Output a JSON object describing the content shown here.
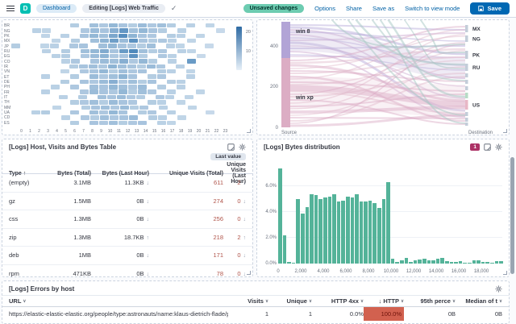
{
  "header": {
    "breadcrumbs": {
      "dashboard": "Dashboard",
      "current": "Editing [Logs] Web Traffic"
    },
    "unsaved_badge": "Unsaved changes",
    "links": {
      "options": "Options",
      "share": "Share",
      "save_as": "Save as",
      "switch_mode": "Switch to view mode"
    },
    "save_label": "Save",
    "logo_letter": "D"
  },
  "chart_data": {
    "heatmap": {
      "type": "heatmap",
      "xlabel_hours": [
        "0",
        "1",
        "2",
        "3",
        "4",
        "5",
        "6",
        "7",
        "8",
        "9",
        "10",
        "11",
        "12",
        "13",
        "14",
        "15",
        "16",
        "17",
        "18",
        "19",
        "20",
        "21",
        "22",
        "23"
      ],
      "legend_ticks": [
        "20",
        "10"
      ],
      "cell_color": "#3d7db5",
      "rows": [
        {
          "label": "BR",
          "values": [
            0,
            0,
            0,
            0,
            0,
            0,
            9,
            0,
            12,
            10,
            14,
            11,
            9,
            13,
            10,
            12,
            9,
            0,
            8,
            0,
            7,
            0,
            0,
            0
          ]
        },
        {
          "label": "NG",
          "values": [
            0,
            0,
            8,
            7,
            0,
            0,
            0,
            10,
            13,
            11,
            16,
            22,
            12,
            14,
            11,
            9,
            0,
            8,
            0,
            0,
            0,
            6,
            0,
            0
          ]
        },
        {
          "label": "PK",
          "values": [
            0,
            0,
            0,
            7,
            0,
            8,
            0,
            11,
            14,
            12,
            18,
            24,
            15,
            11,
            10,
            0,
            9,
            8,
            0,
            7,
            0,
            0,
            0,
            0
          ]
        },
        {
          "label": "MX",
          "values": [
            0,
            0,
            0,
            0,
            7,
            0,
            9,
            0,
            12,
            15,
            20,
            13,
            23,
            11,
            9,
            10,
            8,
            0,
            7,
            0,
            0,
            0,
            0,
            0
          ]
        },
        {
          "label": "JP",
          "values": [
            9,
            0,
            0,
            7,
            8,
            0,
            10,
            11,
            0,
            12,
            14,
            11,
            10,
            9,
            12,
            0,
            8,
            7,
            0,
            0,
            6,
            0,
            0,
            0
          ]
        },
        {
          "label": "RU",
          "values": [
            0,
            0,
            0,
            8,
            0,
            9,
            0,
            12,
            14,
            17,
            11,
            21,
            25,
            12,
            9,
            10,
            0,
            8,
            7,
            0,
            0,
            0,
            0,
            0
          ]
        },
        {
          "label": "EG",
          "values": [
            0,
            0,
            0,
            0,
            8,
            9,
            0,
            10,
            13,
            15,
            10,
            11,
            23,
            9,
            0,
            10,
            8,
            0,
            0,
            6,
            0,
            0,
            0,
            0
          ]
        },
        {
          "label": "CO",
          "values": [
            0,
            0,
            0,
            0,
            0,
            8,
            10,
            0,
            11,
            13,
            12,
            16,
            10,
            14,
            9,
            0,
            8,
            0,
            21,
            0,
            0,
            0,
            0,
            0
          ]
        },
        {
          "label": "IR",
          "values": [
            0,
            0,
            0,
            0,
            0,
            0,
            9,
            11,
            12,
            10,
            15,
            12,
            11,
            9,
            13,
            10,
            0,
            8,
            0,
            0,
            0,
            0,
            0,
            0
          ]
        },
        {
          "label": "VN",
          "values": [
            0,
            0,
            0,
            0,
            0,
            7,
            0,
            10,
            11,
            14,
            9,
            12,
            10,
            11,
            0,
            9,
            8,
            0,
            7,
            0,
            0,
            0,
            0,
            0
          ]
        },
        {
          "label": "ET",
          "values": [
            0,
            0,
            0,
            8,
            0,
            0,
            9,
            0,
            13,
            10,
            12,
            15,
            11,
            0,
            9,
            10,
            0,
            0,
            8,
            0,
            0,
            0,
            0,
            0
          ]
        },
        {
          "label": "DE",
          "values": [
            0,
            0,
            0,
            0,
            0,
            9,
            0,
            11,
            10,
            13,
            16,
            10,
            12,
            9,
            11,
            0,
            9,
            8,
            0,
            0,
            0,
            0,
            0,
            0
          ]
        },
        {
          "label": "PH",
          "values": [
            0,
            0,
            0,
            0,
            8,
            0,
            10,
            0,
            12,
            11,
            14,
            12,
            10,
            13,
            0,
            9,
            0,
            8,
            0,
            0,
            0,
            0,
            0,
            0
          ]
        },
        {
          "label": "FR",
          "values": [
            0,
            0,
            0,
            8,
            0,
            0,
            0,
            10,
            13,
            11,
            10,
            14,
            9,
            12,
            10,
            0,
            8,
            0,
            0,
            7,
            0,
            0,
            0,
            0
          ]
        },
        {
          "label": "IT",
          "values": [
            0,
            0,
            0,
            0,
            0,
            8,
            0,
            9,
            0,
            12,
            11,
            13,
            10,
            9,
            0,
            10,
            8,
            0,
            7,
            0,
            0,
            0,
            0,
            0
          ]
        },
        {
          "label": "TH",
          "values": [
            0,
            0,
            0,
            0,
            0,
            0,
            9,
            10,
            12,
            9,
            13,
            11,
            10,
            0,
            9,
            8,
            0,
            7,
            0,
            0,
            0,
            0,
            0,
            0
          ]
        },
        {
          "label": "MM",
          "values": [
            0,
            0,
            0,
            0,
            7,
            0,
            0,
            9,
            11,
            12,
            10,
            13,
            9,
            10,
            0,
            8,
            0,
            0,
            7,
            0,
            0,
            0,
            0,
            0
          ]
        },
        {
          "label": "UA",
          "values": [
            0,
            0,
            8,
            9,
            0,
            0,
            10,
            0,
            12,
            10,
            14,
            11,
            0,
            9,
            10,
            0,
            8,
            0,
            0,
            0,
            6,
            0,
            0,
            0
          ]
        },
        {
          "label": "CD",
          "values": [
            0,
            0,
            0,
            0,
            0,
            8,
            0,
            10,
            9,
            12,
            10,
            11,
            13,
            0,
            9,
            8,
            0,
            7,
            0,
            0,
            0,
            0,
            0,
            0
          ]
        },
        {
          "label": "ES",
          "values": [
            0,
            0,
            0,
            0,
            0,
            0,
            9,
            0,
            11,
            10,
            12,
            9,
            10,
            11,
            0,
            8,
            7,
            0,
            0,
            0,
            0,
            0,
            0,
            0
          ]
        }
      ]
    },
    "sankey": {
      "type": "sankey",
      "source_axis": "Source",
      "dest_axis": "Destination",
      "y_ticks": [
        {
          "v": "400",
          "y": 32
        },
        {
          "v": "200",
          "y": 82
        },
        {
          "v": "0",
          "y": 133
        }
      ],
      "source_nodes": [
        {
          "label": "win 8",
          "y": 2,
          "h": 45,
          "c": "#b2a4d6"
        },
        {
          "label": "win xp",
          "y": 47,
          "h": 86,
          "c": "#dcadc4"
        }
      ],
      "dest_nodes": [
        {
          "y": 6,
          "h": 9,
          "label": "MX"
        },
        {
          "y": 19,
          "h": 8,
          "label": "NG"
        },
        {
          "y": 38,
          "h": 10,
          "label": "PK"
        },
        {
          "y": 54,
          "h": 9,
          "label": "RU"
        },
        {
          "y": 66,
          "h": 5
        },
        {
          "y": 74,
          "h": 5
        },
        {
          "y": 82,
          "h": 5
        },
        {
          "y": 90,
          "h": 7,
          "c": "#b7dcc6"
        },
        {
          "y": 99,
          "h": 12,
          "label": "US",
          "c": "#e8b7c6"
        },
        {
          "y": 114,
          "h": 5
        },
        {
          "y": 121,
          "h": 5
        },
        {
          "y": 127,
          "h": 4
        }
      ],
      "palette": [
        "#c9a6ce",
        "#b2a4d6",
        "#d9a8c3",
        "#e0b9c9",
        "#a5c8c3",
        "#cbbede",
        "#ecd2dd"
      ],
      "flows": [
        [
          6,
          12,
          2,
          1
        ],
        [
          9,
          42,
          3,
          1
        ],
        [
          12,
          72,
          2,
          0
        ],
        [
          15,
          26,
          1.5,
          1
        ],
        [
          18,
          97,
          2,
          0
        ],
        [
          22,
          56,
          1.5,
          1
        ],
        [
          25,
          16,
          2,
          0
        ],
        [
          28,
          112,
          3,
          1
        ],
        [
          32,
          82,
          1.5,
          0
        ],
        [
          35,
          32,
          2,
          1
        ],
        [
          39,
          120,
          2,
          0
        ],
        [
          43,
          62,
          1.5,
          1
        ],
        [
          45,
          46,
          1.5,
          0
        ],
        [
          25,
          60,
          26,
          5
        ],
        [
          90,
          100,
          40,
          6
        ],
        [
          50,
          8,
          2,
          2
        ],
        [
          53,
          36,
          2.5,
          3
        ],
        [
          56,
          100,
          3,
          2
        ],
        [
          60,
          20,
          1.5,
          3
        ],
        [
          63,
          76,
          2,
          2
        ],
        [
          66,
          46,
          2,
          3
        ],
        [
          70,
          125,
          2.5,
          2
        ],
        [
          73,
          12,
          1.5,
          3
        ],
        [
          77,
          88,
          2,
          2
        ],
        [
          80,
          50,
          1.5,
          3
        ],
        [
          84,
          104,
          7,
          2
        ],
        [
          88,
          116,
          2,
          3
        ],
        [
          92,
          28,
          1.5,
          2
        ],
        [
          95,
          66,
          2,
          3
        ],
        [
          99,
          129,
          2,
          2
        ],
        [
          103,
          18,
          1.5,
          3
        ],
        [
          107,
          92,
          2,
          2
        ],
        [
          110,
          38,
          1.5,
          3
        ],
        [
          114,
          108,
          4,
          2
        ],
        [
          118,
          58,
          1.5,
          3
        ],
        [
          121,
          122,
          2,
          2
        ],
        [
          125,
          70,
          2,
          3
        ],
        [
          128,
          30,
          1.5,
          2
        ],
        [
          131,
          118,
          3,
          2
        ]
      ],
      "teal_flows": [
        [
          90,
          30,
          2
        ],
        [
          120,
          55,
          2.5
        ],
        [
          140,
          75,
          2
        ],
        [
          160,
          95,
          2.5
        ],
        [
          110,
          118,
          2
        ],
        [
          180,
          60,
          1.5
        ],
        [
          200,
          40,
          2
        ],
        [
          150,
          128,
          2
        ]
      ]
    },
    "histogram": {
      "type": "bar",
      "bar_color": "#54b399",
      "y_ticks": [
        "0.0%",
        "2.0%",
        "4.0%",
        "6.0%"
      ],
      "x_ticks": [
        "0",
        "2,000",
        "4,000",
        "6,000",
        "8,000",
        "10,000",
        "12,000",
        "14,000",
        "16,000",
        "18,000"
      ],
      "bin_width": 400,
      "values_pct": [
        7.4,
        2.2,
        0.1,
        0.05,
        5.0,
        3.9,
        4.4,
        5.4,
        5.3,
        5.0,
        5.1,
        5.2,
        5.4,
        4.8,
        4.9,
        5.2,
        5.1,
        5.4,
        4.8,
        4.8,
        4.9,
        4.7,
        4.3,
        5.0,
        6.3,
        0.4,
        0.15,
        0.25,
        0.45,
        0.1,
        0.25,
        0.3,
        0.35,
        0.25,
        0.25,
        0.35,
        0.45,
        0.2,
        0.15,
        0.1,
        0.2,
        0.05,
        0.08,
        0.25,
        0.25,
        0.15,
        0.1,
        0.05,
        0.2,
        0.2
      ]
    }
  },
  "panels": {
    "visits_table": {
      "title": "[Logs] Host, Visits and Bytes Table",
      "badge": "Last value",
      "columns": [
        "Type",
        "Bytes (Total)",
        "Bytes (Last Hour)",
        "Unique Visits (Total)",
        "Unique Visits (Last Hour)"
      ],
      "type_sort_icon": "↑",
      "rows": [
        {
          "type": "(empty)",
          "bytes_total": "3.1MB",
          "bytes_last": "11.3KB",
          "bytes_dir": "↓",
          "uv_total": "611",
          "uv_last": "2",
          "uv_dir": "↓"
        },
        {
          "type": "gz",
          "bytes_total": "1.5MB",
          "bytes_last": "0B",
          "bytes_dir": "↓",
          "uv_total": "274",
          "uv_last": "0",
          "uv_dir": "↓"
        },
        {
          "type": "css",
          "bytes_total": "1.3MB",
          "bytes_last": "0B",
          "bytes_dir": "↓",
          "uv_total": "256",
          "uv_last": "0",
          "uv_dir": "↓"
        },
        {
          "type": "zip",
          "bytes_total": "1.3MB",
          "bytes_last": "18.7KB",
          "bytes_dir": "↑",
          "uv_total": "218",
          "uv_last": "2",
          "uv_dir": "↑"
        },
        {
          "type": "deb",
          "bytes_total": "1MB",
          "bytes_last": "0B",
          "bytes_dir": "↓",
          "uv_total": "171",
          "uv_last": "0",
          "uv_dir": "↓"
        },
        {
          "type": "rpm",
          "bytes_total": "471KB",
          "bytes_last": "0B",
          "bytes_dir": "↓",
          "uv_total": "78",
          "uv_last": "0",
          "uv_dir": "↓"
        }
      ]
    },
    "bytes_distribution": {
      "title": "[Logs] Bytes distribution",
      "filter_count": "1"
    },
    "errors": {
      "title": "[Logs] Errors by host",
      "columns": [
        {
          "label": "URL"
        },
        {
          "label": "Visits"
        },
        {
          "label": "Unique"
        },
        {
          "label": "HTTP 4xx"
        },
        {
          "label": "HTTP",
          "sort": "↓"
        },
        {
          "label": "95th perce"
        },
        {
          "label": "Median of t"
        }
      ],
      "rows": [
        {
          "url": "https://elastic-elastic-elastic.org/people/type:astronauts/name:klaus-dietrich-flade/profile",
          "visits": "1",
          "unique": "1",
          "http4xx": "0.0%",
          "http5xx": "100.0%",
          "p95": "0B",
          "median": "0B"
        }
      ]
    }
  }
}
